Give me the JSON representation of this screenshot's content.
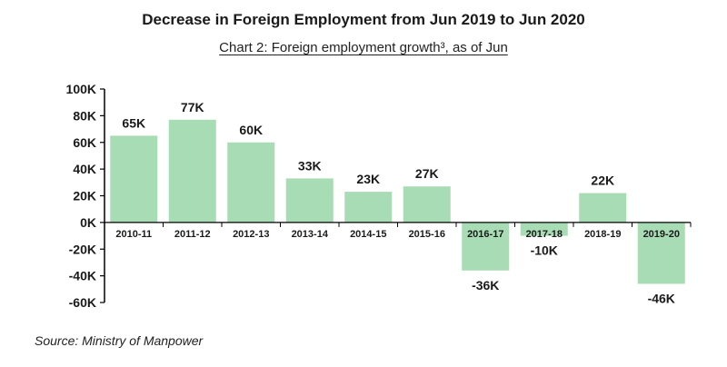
{
  "colors": {
    "bar": "#a8dcb5",
    "axis": "#000000",
    "text": "#1a1a1a"
  },
  "chart_data": {
    "type": "bar",
    "title": "Decrease in Foreign Employment from Jun 2019 to Jun 2020",
    "subtitle": "Chart 2: Foreign employment growth³, as of Jun",
    "categories": [
      "2010-11",
      "2011-12",
      "2012-13",
      "2013-14",
      "2014-15",
      "2015-16",
      "2016-17",
      "2017-18",
      "2018-19",
      "2019-20"
    ],
    "values": [
      65000,
      77000,
      60000,
      33000,
      23000,
      27000,
      -36000,
      -10000,
      22000,
      -46000
    ],
    "data_labels": [
      "65K",
      "77K",
      "60K",
      "33K",
      "23K",
      "27K",
      "-36K",
      "-10K",
      "22K",
      "-46K"
    ],
    "y_ticks": [
      100000,
      80000,
      60000,
      40000,
      20000,
      0,
      -20000,
      -40000,
      -60000
    ],
    "y_tick_labels": [
      "100K",
      "80K",
      "60K",
      "40K",
      "20K",
      "0K",
      "-20K",
      "-40K",
      "-60K"
    ],
    "ylim": [
      -60000,
      100000
    ],
    "xlabel": "",
    "ylabel": "",
    "grid": false,
    "legend": "none"
  },
  "source": "Source: Ministry of Manpower"
}
